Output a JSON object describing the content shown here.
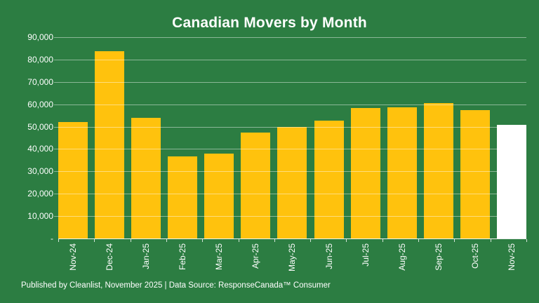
{
  "title": "Canadian Movers by Month",
  "footer": "Published by Cleanlist, November 2025 | Data Source: ResponseCanada™ Consumer",
  "colors": {
    "background": "#2C7D42",
    "bar": "#FFC20D",
    "highlight_bar": "#FFFFFF",
    "text": "#FFFFFF",
    "gridline": "rgba(255,255,255,0.45)"
  },
  "chart_data": {
    "type": "bar",
    "title": "Canadian Movers by Month",
    "categories": [
      "Nov-24",
      "Dec-24",
      "Jan-25",
      "Feb-25",
      "Mar-25",
      "Apr-25",
      "May-25",
      "Jun-25",
      "Jul-25",
      "Aug-25",
      "Sep-25",
      "Oct-25",
      "Nov-25"
    ],
    "values": [
      52100,
      83800,
      53800,
      36600,
      38100,
      47300,
      49800,
      52700,
      58300,
      58800,
      60500,
      57300,
      50800
    ],
    "bar_colors": [
      "#FFC20D",
      "#FFC20D",
      "#FFC20D",
      "#FFC20D",
      "#FFC20D",
      "#FFC20D",
      "#FFC20D",
      "#FFC20D",
      "#FFC20D",
      "#FFC20D",
      "#FFC20D",
      "#FFC20D",
      "#FFFFFF"
    ],
    "xlabel": "",
    "ylabel": "",
    "ylim": [
      0,
      90000
    ],
    "ytick_interval": 10000,
    "ytick_labels_bottom_to_top": [
      "-",
      "10,000",
      "20,000",
      "30,000",
      "40,000",
      "50,000",
      "60,000",
      "70,000",
      "80,000",
      "90,000"
    ],
    "grid": true,
    "legend": false
  }
}
